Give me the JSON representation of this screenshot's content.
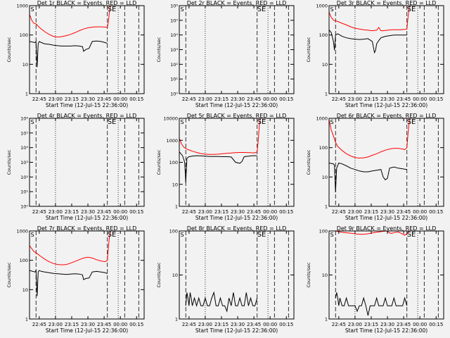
{
  "page": {
    "background": "#f2f2f2"
  },
  "colors": {
    "events": "#000000",
    "lld": "#ff0000",
    "axis": "#000000"
  },
  "x_axis": {
    "label": "Start Time (12-Jul-15 22:36:00)",
    "tick_labels": [
      "22:45",
      "23:00",
      "23:15",
      "23:30",
      "23:45",
      "00:00",
      "00:15"
    ],
    "tick_minutes": [
      9,
      24,
      39,
      54,
      69,
      84,
      99
    ],
    "xlim_minutes": [
      0,
      106
    ]
  },
  "y_axis": {
    "label": "Counts/sec"
  },
  "markers": {
    "dashed_minutes": [
      6,
      72,
      88,
      101
    ],
    "dotted_minutes": [
      24,
      82
    ],
    "start_label": "S",
    "end_label": "SE",
    "start_label_minute": 1,
    "end_label_minute": 72
  },
  "chart_data": [
    {
      "type": "line",
      "title": "Det 1r BLACK = Events, RED = LLD",
      "xlabel": "Start Time (12-Jul-15 22:36:00)",
      "ylabel": "Counts/sec",
      "yscale": "log",
      "ylim": [
        1,
        1000
      ],
      "y_tick_labels": [
        "1",
        "10",
        "100",
        "1000"
      ],
      "y_tick_values": [
        1,
        10,
        100,
        1000
      ],
      "series": [
        {
          "name": "Events",
          "color": "#000000",
          "x": [
            0,
            5,
            6,
            7,
            8,
            9,
            11,
            14,
            18,
            22,
            26,
            30,
            34,
            38,
            42,
            46,
            49,
            50,
            52,
            55,
            58,
            62,
            66,
            70,
            72
          ],
          "y": [
            60,
            55,
            60,
            8,
            50,
            60,
            55,
            50,
            48,
            45,
            43,
            42,
            42,
            42,
            43,
            42,
            40,
            28,
            32,
            35,
            60,
            62,
            60,
            55,
            52
          ]
        },
        {
          "name": "LLD",
          "color": "#ff0000",
          "x": [
            0,
            2,
            4,
            6,
            8,
            10,
            14,
            18,
            22,
            26,
            30,
            34,
            38,
            42,
            46,
            50,
            54,
            58,
            62,
            66,
            70,
            72,
            73,
            74,
            75
          ],
          "y": [
            500,
            320,
            250,
            240,
            200,
            170,
            130,
            105,
            90,
            85,
            88,
            95,
            105,
            120,
            140,
            160,
            175,
            185,
            190,
            190,
            185,
            180,
            300,
            700,
            1000
          ]
        }
      ]
    },
    {
      "type": "line",
      "title": "Det 2r BLACK = Events, RED = LLD",
      "xlabel": "Start Time (12-Jul-15 22:36:00)",
      "ylabel": "Counts/sec",
      "yscale": "log",
      "ylim": [
        1,
        1000000
      ],
      "y_tick_labels": [
        "10⁰",
        "10¹",
        "10²",
        "10³",
        "10⁴",
        "10⁵",
        "10⁶"
      ],
      "y_tick_values": [
        1,
        10,
        100,
        1000,
        10000,
        100000,
        1000000
      ],
      "series": [
        {
          "name": "Events",
          "color": "#000000",
          "x": [],
          "y": []
        },
        {
          "name": "LLD",
          "color": "#ff0000",
          "x": [],
          "y": []
        }
      ]
    },
    {
      "type": "line",
      "title": "Det 3r BLACK = Events, RED = LLD",
      "xlabel": "Start Time (12-Jul-15 22:36:00)",
      "ylabel": "Counts/sec",
      "yscale": "log",
      "ylim": [
        1,
        1000
      ],
      "y_tick_labels": [
        "1",
        "10",
        "100",
        "1000"
      ],
      "y_tick_values": [
        1,
        10,
        100,
        1000
      ],
      "series": [
        {
          "name": "Events",
          "color": "#000000",
          "x": [
            0,
            2,
            4,
            5,
            6,
            8,
            12,
            16,
            20,
            24,
            28,
            32,
            36,
            40,
            42,
            43,
            44,
            46,
            48,
            50,
            52,
            56,
            60,
            64,
            68,
            72
          ],
          "y": [
            150,
            120,
            60,
            30,
            100,
            110,
            90,
            80,
            75,
            72,
            70,
            72,
            75,
            60,
            25,
            30,
            50,
            65,
            80,
            85,
            90,
            95,
            100,
            100,
            100,
            100
          ]
        },
        {
          "name": "LLD",
          "color": "#ff0000",
          "x": [
            0,
            2,
            4,
            6,
            8,
            12,
            16,
            20,
            24,
            28,
            32,
            36,
            40,
            44,
            46,
            48,
            50,
            54,
            58,
            62,
            66,
            70,
            72,
            73,
            74,
            75
          ],
          "y": [
            600,
            400,
            320,
            300,
            290,
            250,
            220,
            190,
            170,
            160,
            150,
            145,
            140,
            145,
            180,
            140,
            140,
            145,
            150,
            150,
            150,
            155,
            160,
            400,
            800,
            1000
          ]
        }
      ]
    },
    {
      "type": "line",
      "title": "Det 4r BLACK = Events, RED = LLD",
      "xlabel": "Start Time (12-Jul-15 22:36:00)",
      "ylabel": "Counts/sec",
      "yscale": "log",
      "ylim": [
        1,
        1000000
      ],
      "y_tick_labels": [
        "10⁰",
        "10¹",
        "10²",
        "10³",
        "10⁴",
        "10⁵",
        "10⁶"
      ],
      "y_tick_values": [
        1,
        10,
        100,
        1000,
        10000,
        100000,
        1000000
      ],
      "series": [
        {
          "name": "Events",
          "color": "#000000",
          "x": [],
          "y": []
        },
        {
          "name": "LLD",
          "color": "#ff0000",
          "x": [],
          "y": []
        }
      ]
    },
    {
      "type": "line",
      "title": "Det 5r BLACK = Events, RED = LLD",
      "xlabel": "Start Time (12-Jul-15 22:36:00)",
      "ylabel": "Counts/sec",
      "yscale": "log",
      "ylim": [
        1,
        10000
      ],
      "y_tick_labels": [
        "1",
        "10",
        "100",
        "1000",
        "10000"
      ],
      "y_tick_values": [
        1,
        10,
        100,
        1000,
        10000
      ],
      "series": [
        {
          "name": "Events",
          "color": "#000000",
          "x": [
            0,
            3,
            5,
            6,
            7,
            9,
            12,
            16,
            20,
            24,
            28,
            32,
            36,
            40,
            44,
            48,
            52,
            56,
            58,
            60,
            64,
            68,
            72
          ],
          "y": [
            300,
            200,
            100,
            12,
            150,
            180,
            190,
            200,
            195,
            190,
            185,
            185,
            185,
            180,
            180,
            175,
            100,
            90,
            110,
            180,
            190,
            200,
            200
          ]
        },
        {
          "name": "LLD",
          "color": "#ff0000",
          "x": [
            0,
            2,
            4,
            6,
            8,
            12,
            16,
            20,
            24,
            28,
            32,
            36,
            40,
            44,
            48,
            52,
            56,
            60,
            64,
            68,
            70,
            72,
            73,
            74,
            75
          ],
          "y": [
            1200,
            700,
            500,
            420,
            380,
            320,
            280,
            250,
            235,
            230,
            230,
            235,
            245,
            255,
            265,
            275,
            280,
            280,
            275,
            270,
            270,
            300,
            1000,
            5000,
            10000
          ]
        }
      ]
    },
    {
      "type": "line",
      "title": "Det 6r BLACK = Events, RED = LLD",
      "xlabel": "Start Time (12-Jul-15 22:36:00)",
      "ylabel": "Counts/sec",
      "yscale": "log",
      "ylim": [
        1,
        1000
      ],
      "y_tick_labels": [
        "1",
        "10",
        "100",
        "1000"
      ],
      "y_tick_values": [
        1,
        10,
        100,
        1000
      ],
      "series": [
        {
          "name": "Events",
          "color": "#000000",
          "x": [
            0,
            4,
            5,
            6,
            7,
            9,
            12,
            16,
            20,
            24,
            28,
            32,
            36,
            40,
            44,
            48,
            50,
            52,
            54,
            56,
            60,
            64,
            68,
            72
          ],
          "y": [
            30,
            28,
            25,
            3,
            20,
            30,
            28,
            24,
            20,
            18,
            16,
            15,
            15,
            16,
            17,
            18,
            10,
            8,
            9,
            20,
            22,
            20,
            19,
            18
          ]
        },
        {
          "name": "LLD",
          "color": "#ff0000",
          "x": [
            0,
            2,
            4,
            6,
            8,
            12,
            16,
            20,
            24,
            28,
            32,
            36,
            40,
            44,
            48,
            52,
            56,
            60,
            64,
            68,
            70,
            72,
            73,
            74,
            75
          ],
          "y": [
            900,
            400,
            250,
            150,
            110,
            80,
            62,
            52,
            46,
            44,
            45,
            48,
            55,
            62,
            72,
            82,
            90,
            95,
            95,
            90,
            85,
            100,
            300,
            700,
            1000
          ]
        }
      ]
    },
    {
      "type": "line",
      "title": "Det 7r BLACK = Events, RED = LLD",
      "xlabel": "Start Time (12-Jul-15 22:36:00)",
      "ylabel": "Counts/sec",
      "yscale": "log",
      "ylim": [
        1,
        1000
      ],
      "y_tick_labels": [
        "1",
        "10",
        "100",
        "1000"
      ],
      "y_tick_values": [
        1,
        10,
        100,
        1000
      ],
      "series": [
        {
          "name": "Events",
          "color": "#000000",
          "x": [
            0,
            5,
            6,
            7,
            8,
            9,
            11,
            14,
            18,
            22,
            26,
            30,
            34,
            38,
            42,
            46,
            49,
            50,
            52,
            55,
            58,
            62,
            66,
            70,
            72
          ],
          "y": [
            45,
            40,
            45,
            6,
            40,
            45,
            42,
            40,
            38,
            36,
            35,
            34,
            33,
            34,
            35,
            34,
            32,
            22,
            24,
            25,
            40,
            42,
            40,
            38,
            35
          ]
        },
        {
          "name": "LLD",
          "color": "#ff0000",
          "x": [
            0,
            2,
            4,
            6,
            8,
            10,
            14,
            18,
            22,
            26,
            30,
            34,
            38,
            42,
            46,
            50,
            54,
            58,
            62,
            66,
            70,
            72,
            73,
            74,
            75
          ],
          "y": [
            320,
            250,
            200,
            180,
            160,
            140,
            110,
            90,
            78,
            72,
            70,
            72,
            80,
            92,
            105,
            120,
            128,
            120,
            105,
            95,
            90,
            100,
            300,
            700,
            1000
          ]
        }
      ]
    },
    {
      "type": "line",
      "title": "Det 8r BLACK = Events, RED = LLD",
      "xlabel": "Start Time (12-Jul-15 22:36:00)",
      "ylabel": "Counts/sec",
      "yscale": "log",
      "ylim": [
        1,
        100
      ],
      "y_tick_labels": [
        "1",
        "10",
        "100"
      ],
      "y_tick_values": [
        1,
        10,
        100
      ],
      "series": [
        {
          "name": "Events",
          "color": "#000000",
          "x": [
            6,
            7,
            8,
            9,
            10,
            11,
            12,
            14,
            16,
            18,
            20,
            22,
            24,
            26,
            28,
            30,
            32,
            34,
            36,
            38,
            40,
            42,
            44,
            46,
            48,
            50,
            52,
            54,
            56,
            58,
            60,
            62,
            64,
            66,
            68,
            70,
            72
          ],
          "y": [
            2,
            4,
            3,
            2,
            4,
            3,
            2,
            3,
            2,
            3,
            2,
            2,
            3,
            2,
            2,
            3,
            4,
            2,
            2,
            3,
            2,
            2,
            1.5,
            3,
            2,
            4,
            2,
            2,
            3,
            2,
            2,
            4,
            2,
            3,
            2,
            2,
            3
          ]
        },
        {
          "name": "LLD",
          "color": "#ff0000",
          "x": [],
          "y": []
        }
      ]
    },
    {
      "type": "line",
      "title": "Det 9r BLACK = Events, RED = LLD",
      "xlabel": "Start Time (12-Jul-15 22:36:00)",
      "ylabel": "Counts/sec",
      "yscale": "log",
      "ylim": [
        1,
        100
      ],
      "y_tick_labels": [
        "1",
        "10",
        "100"
      ],
      "y_tick_values": [
        1,
        10,
        100
      ],
      "series": [
        {
          "name": "Events",
          "color": "#000000",
          "x": [
            6,
            7,
            8,
            9,
            10,
            12,
            14,
            16,
            18,
            20,
            22,
            24,
            26,
            28,
            30,
            32,
            34,
            36,
            38,
            40,
            42,
            44,
            46,
            48,
            50,
            52,
            54,
            56,
            58,
            60,
            62,
            64,
            66,
            68,
            70,
            72
          ],
          "y": [
            3,
            4,
            3,
            2,
            3,
            2,
            2,
            3,
            2,
            2,
            2,
            2,
            1.5,
            2,
            2,
            3,
            2,
            1.2,
            2,
            2,
            2,
            3,
            2,
            2,
            2,
            3,
            2,
            2,
            2,
            3,
            2,
            2,
            2,
            2,
            3,
            2
          ]
        },
        {
          "name": "LLD",
          "color": "#ff0000",
          "x": [
            6,
            10,
            14,
            18,
            22,
            26,
            30,
            34,
            38,
            42,
            46,
            50,
            54,
            56,
            58,
            60,
            64,
            68,
            70,
            72,
            74,
            75
          ],
          "y": [
            100,
            95,
            92,
            90,
            88,
            85,
            84,
            85,
            88,
            92,
            95,
            98,
            100,
            90,
            88,
            92,
            95,
            85,
            80,
            88,
            100,
            100
          ]
        }
      ]
    }
  ]
}
